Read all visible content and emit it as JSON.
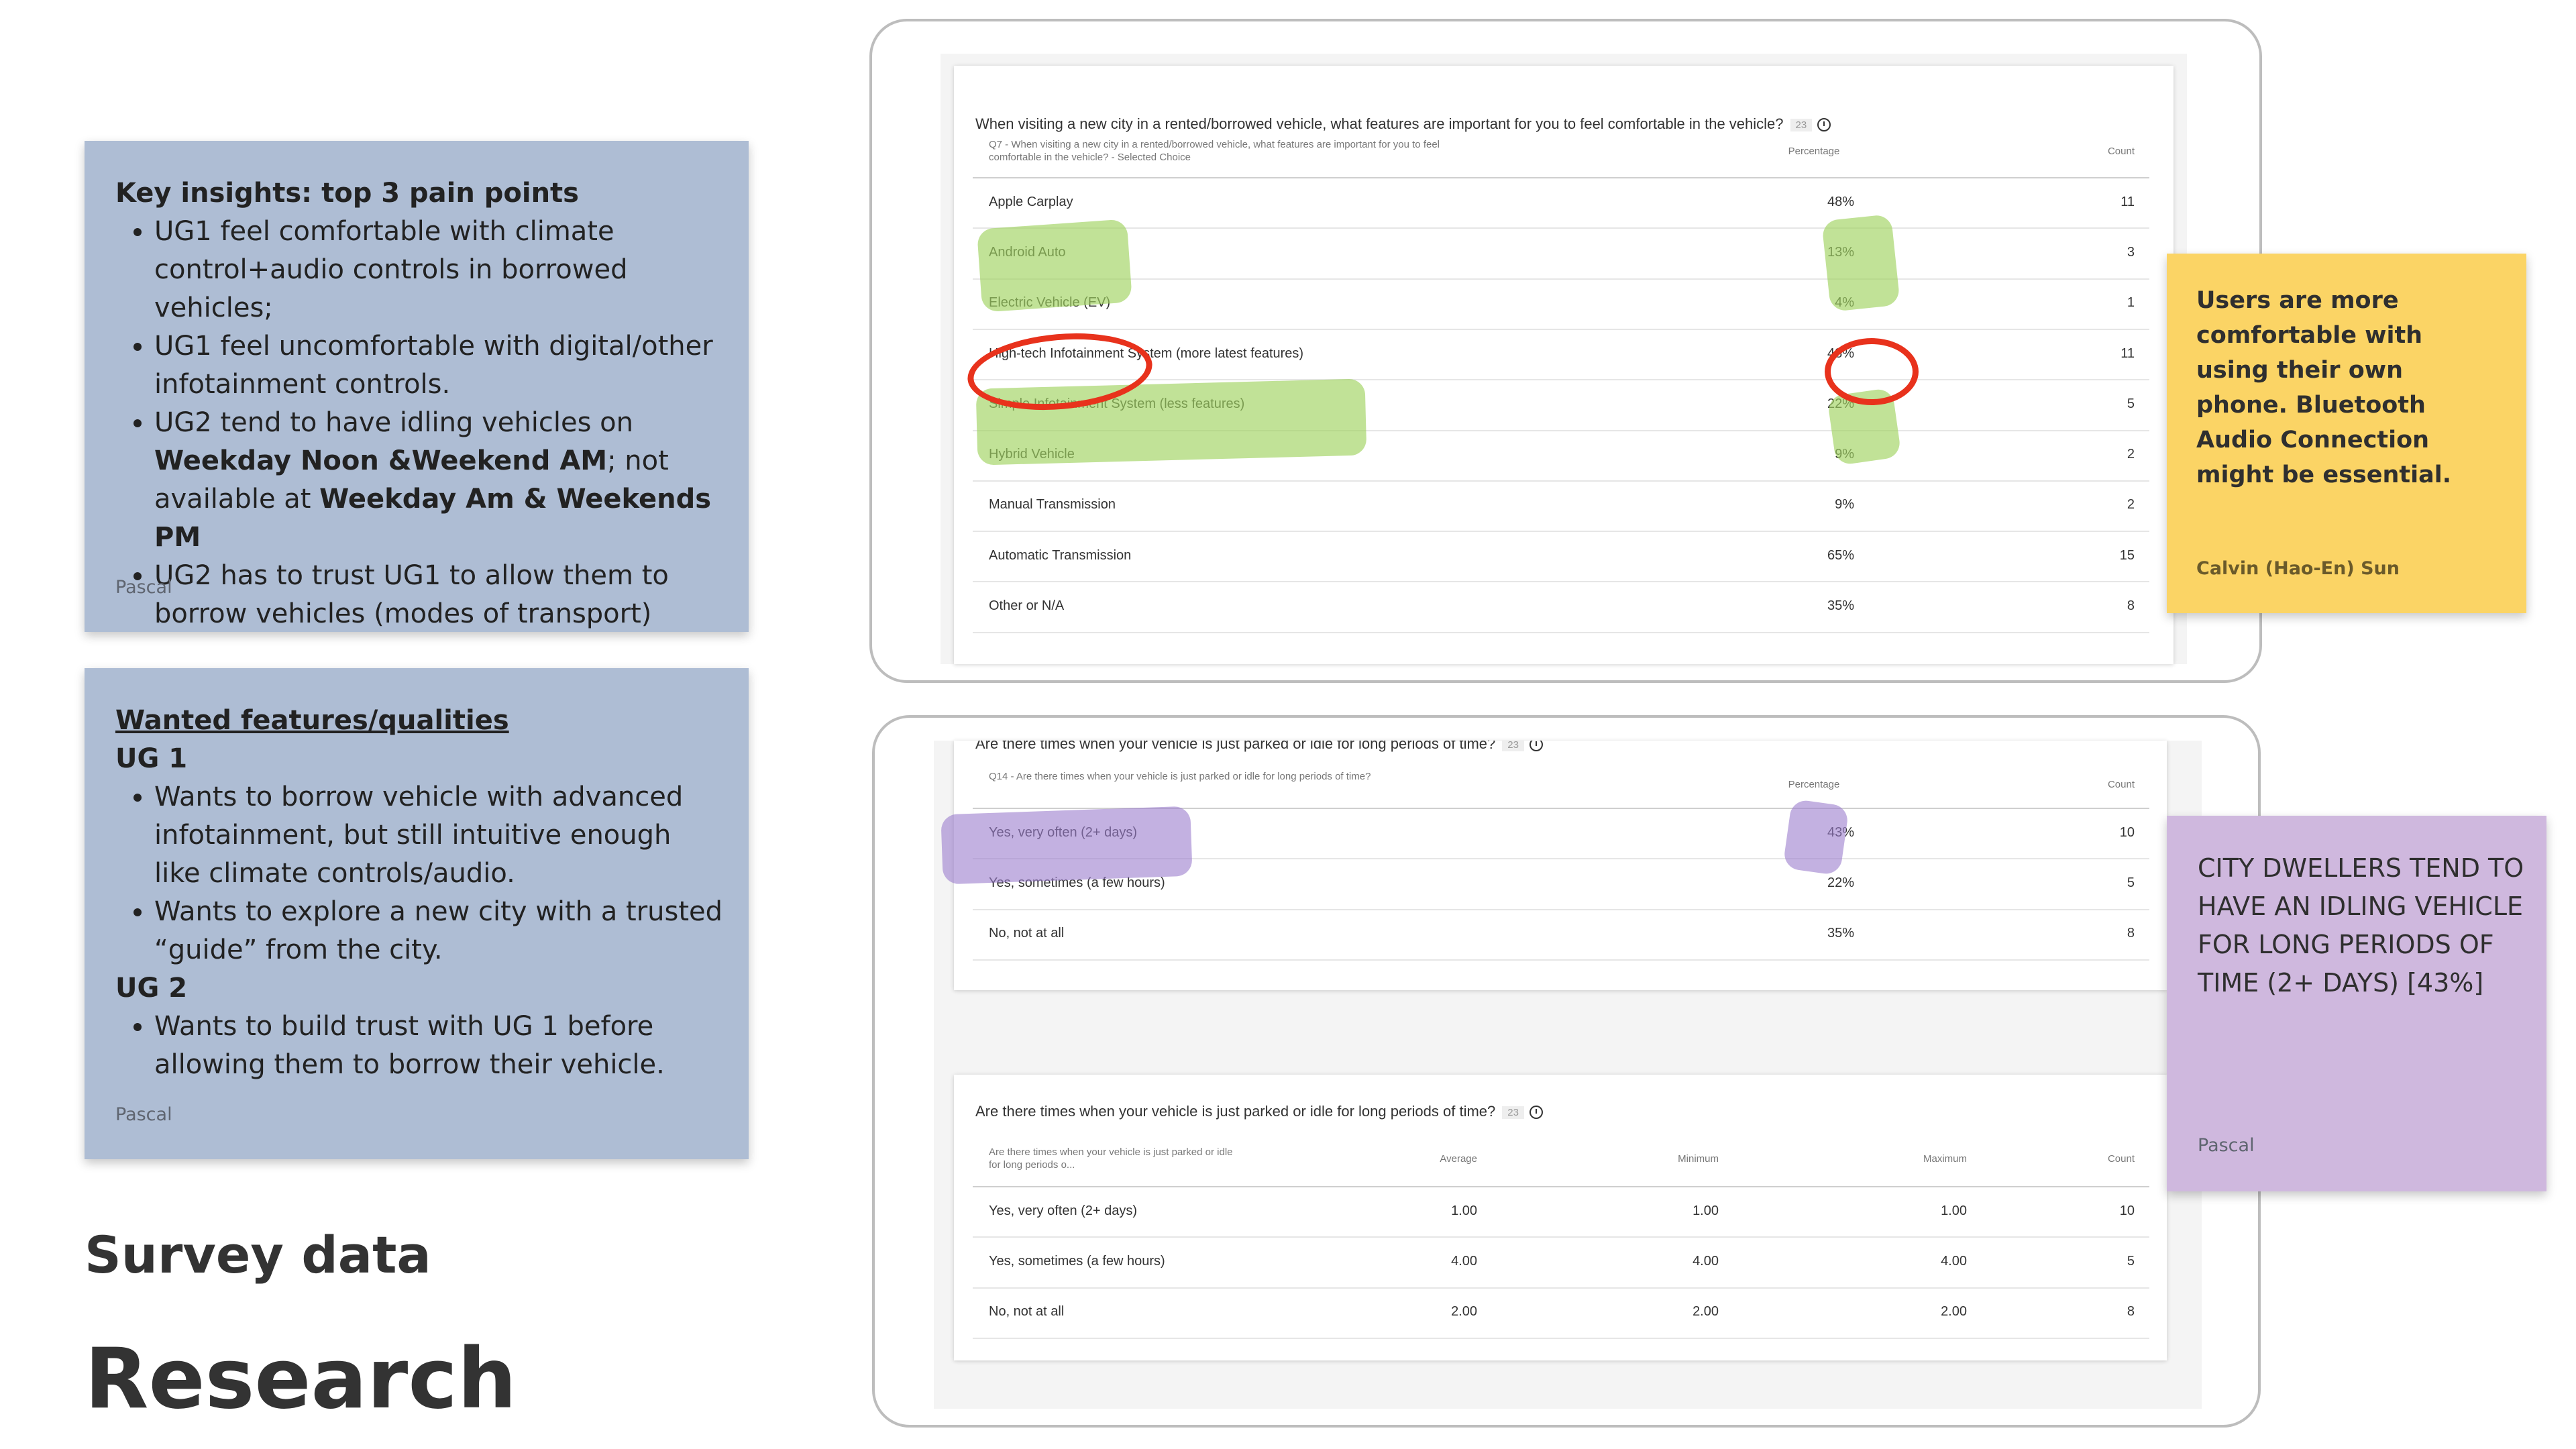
{
  "notes": {
    "key_insights": {
      "title": "Key insights: top 3 pain points",
      "items": [
        {
          "text": "UG1 feel comfortable with climate control+audio controls in borrowed vehicles;"
        },
        {
          "text": "UG1 feel uncomfortable with digital/other infotainment controls."
        },
        {
          "pre": "UG2 tend to have idling vehicles on ",
          "b1": "Weekday Noon &Weekend AM",
          "mid": "; not available at ",
          "b2": "Weekday Am & Weekends PM"
        },
        {
          "text": "UG2 has to trust UG1 to allow them to borrow vehicles (modes of transport)"
        }
      ],
      "author": "Pascal"
    },
    "wanted": {
      "title": "Wanted features/qualities",
      "ug1_label": "UG 1",
      "ug1_items": [
        "Wants to borrow vehicle with advanced infotainment, but still intuitive enough like climate controls/audio.",
        "Wants to explore a new city with a trusted “guide” from the city."
      ],
      "ug2_label": "UG 2",
      "ug2_items": [
        " Wants to build trust with UG 1 before allowing them to borrow their vehicle."
      ],
      "author": "Pascal"
    },
    "yellow": {
      "text": "Users are more comfortable with using their own phone. Bluetooth Audio Connection might be essential.",
      "author": "Calvin (Hao-En) Sun"
    },
    "purple": {
      "text": "CITY DWELLERS TEND TO HAVE AN IDLING VEHICLE FOR LONG PERIODS OF TIME (2+ DAYS) [43%]",
      "author": "Pascal"
    }
  },
  "headings": {
    "survey": "Survey data",
    "research": "Research"
  },
  "q7": {
    "title": "When visiting a new city in a rented/borrowed vehicle, what features are important for you to feel comfortable in the vehicle?",
    "tag": "23",
    "col_question": "Q7 - When visiting a new city in a rented/borrowed vehicle, what features are important for you to feel comfortable in the vehicle? - Selected Choice",
    "col_percentage": "Percentage",
    "col_count": "Count",
    "rows": [
      {
        "label": "Apple Carplay",
        "pct": "48%",
        "count": "11"
      },
      {
        "label": "Android Auto",
        "pct": "13%",
        "count": "3"
      },
      {
        "label": "Electric Vehicle (EV)",
        "pct": "4%",
        "count": "1"
      },
      {
        "label": "High-tech Infotainment System (more latest features)",
        "pct": "48%",
        "count": "11"
      },
      {
        "label": "Simple Infotainment System (less features)",
        "pct": "22%",
        "count": "5"
      },
      {
        "label": "Hybrid Vehicle",
        "pct": "9%",
        "count": "2"
      },
      {
        "label": "Manual Transmission",
        "pct": "9%",
        "count": "2"
      },
      {
        "label": "Automatic Transmission",
        "pct": "65%",
        "count": "15"
      },
      {
        "label": "Other or N/A",
        "pct": "35%",
        "count": "8"
      }
    ]
  },
  "q14a": {
    "title": "Are there times when your vehicle is just parked or idle for long periods of time?",
    "tag": "23",
    "col_question": "Q14 - Are there times when your vehicle is just parked or idle for long periods of time?",
    "col_percentage": "Percentage",
    "col_count": "Count",
    "rows": [
      {
        "label": "Yes, very often (2+ days)",
        "pct": "43%",
        "count": "10"
      },
      {
        "label": "Yes, sometimes (a few hours)",
        "pct": "22%",
        "count": "5"
      },
      {
        "label": "No, not at all",
        "pct": "35%",
        "count": "8"
      }
    ]
  },
  "q14b": {
    "title": "Are there times when your vehicle is just parked or idle for long periods of time?",
    "tag": "23",
    "col_question": "Are there times when your vehicle is just parked or idle for long periods o...",
    "col_average": "Average",
    "col_minimum": "Minimum",
    "col_maximum": "Maximum",
    "col_count": "Count",
    "rows": [
      {
        "label": "Yes, very often (2+ days)",
        "avg": "1.00",
        "min": "1.00",
        "max": "1.00",
        "count": "10"
      },
      {
        "label": "Yes, sometimes (a few hours)",
        "avg": "4.00",
        "min": "4.00",
        "max": "4.00",
        "count": "5"
      },
      {
        "label": "No, not at all",
        "avg": "2.00",
        "min": "2.00",
        "max": "2.00",
        "count": "8"
      }
    ]
  }
}
